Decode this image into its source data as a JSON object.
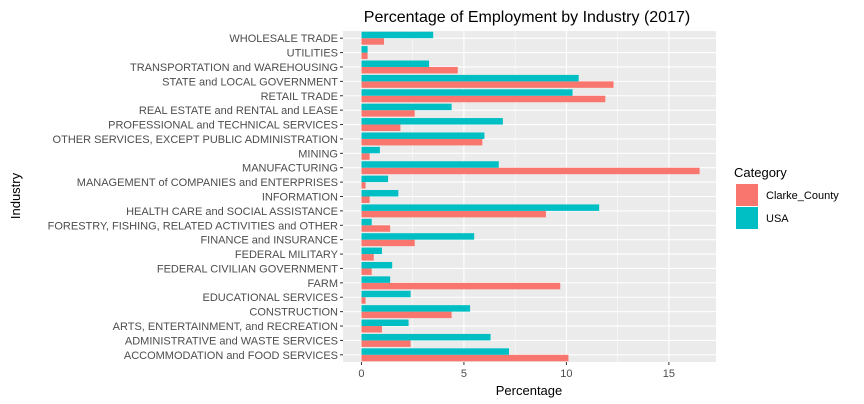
{
  "chart_data": {
    "type": "bar",
    "orientation": "horizontal",
    "title": "Percentage of Employment by Industry (2017)",
    "xlabel": "Percentage",
    "ylabel": "Industry",
    "xlim": [
      -0.9,
      17.3
    ],
    "xticks": [
      0,
      5,
      10,
      15
    ],
    "grid": true,
    "legend_position": "right",
    "legend_title": "Category",
    "categories": [
      "WHOLESALE TRADE",
      "UTILITIES",
      "TRANSPORTATION and WAREHOUSING",
      "STATE and LOCAL GOVERNMENT",
      "RETAIL TRADE",
      "REAL ESTATE and RENTAL and LEASE",
      "PROFESSIONAL and TECHNICAL SERVICES",
      "OTHER SERVICES, EXCEPT PUBLIC ADMINISTRATION",
      "MINING",
      "MANUFACTURING",
      "MANAGEMENT of COMPANIES and ENTERPRISES",
      "INFORMATION",
      "HEALTH CARE and SOCIAL ASSISTANCE",
      "FORESTRY, FISHING, RELATED ACTIVITIES and OTHER",
      "FINANCE and INSURANCE",
      "FEDERAL MILITARY",
      "FEDERAL CIVILIAN GOVERNMENT",
      "FARM",
      "EDUCATIONAL SERVICES",
      "CONSTRUCTION",
      "ARTS, ENTERTAINMENT, and RECREATION",
      "ADMINISTRATIVE and WASTE SERVICES",
      "ACCOMMODATION and FOOD SERVICES"
    ],
    "series": [
      {
        "name": "Clarke_County",
        "color": "#F8766D",
        "values": [
          1.1,
          0.3,
          4.7,
          12.3,
          11.9,
          2.6,
          1.9,
          5.9,
          0.4,
          16.5,
          0.2,
          0.4,
          9.0,
          1.4,
          2.6,
          0.6,
          0.5,
          9.7,
          0.2,
          4.4,
          1.0,
          2.4,
          10.1
        ]
      },
      {
        "name": "USA",
        "color": "#00BFC4",
        "values": [
          3.5,
          0.3,
          3.3,
          10.6,
          10.3,
          4.4,
          6.9,
          6.0,
          0.9,
          6.7,
          1.3,
          1.8,
          11.6,
          0.5,
          5.5,
          1.0,
          1.5,
          1.4,
          2.4,
          5.3,
          2.3,
          6.3,
          7.2
        ]
      }
    ]
  }
}
